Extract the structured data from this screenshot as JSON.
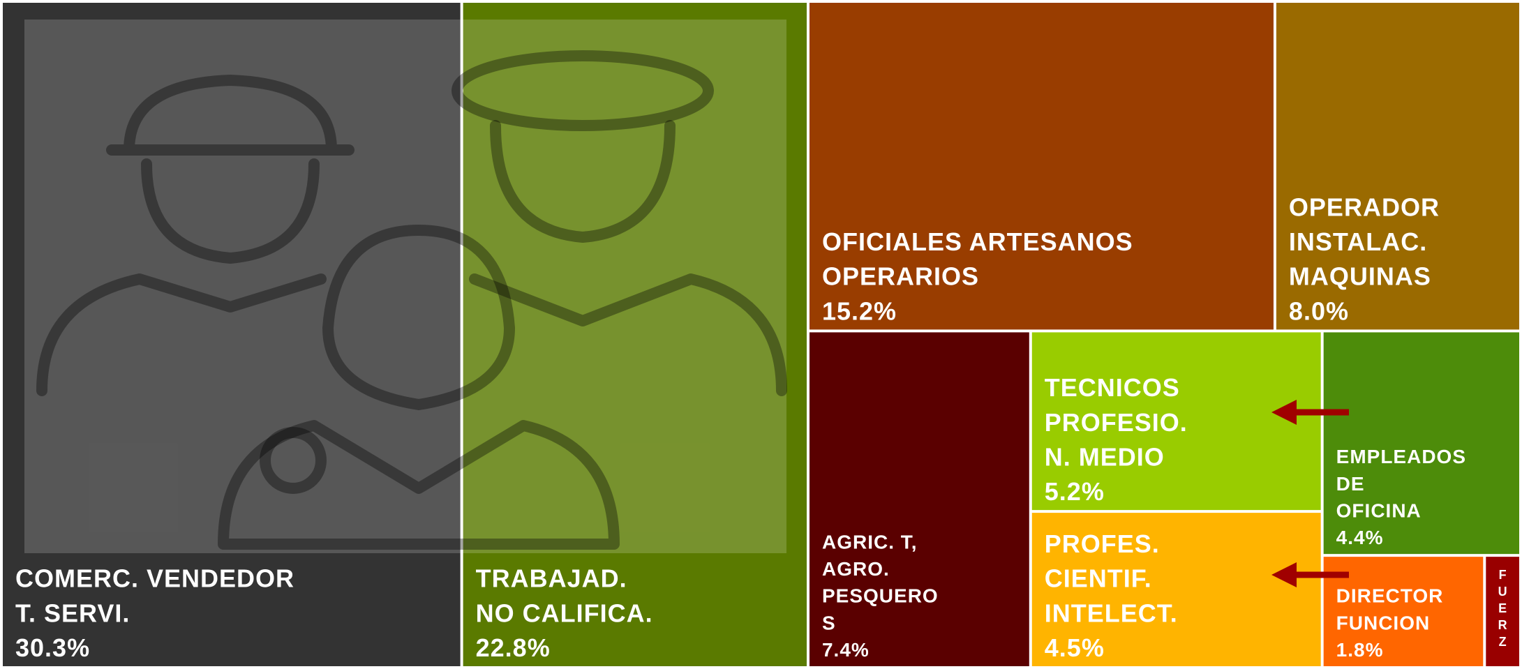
{
  "chart_data": {
    "type": "treemap",
    "items": [
      {
        "lines": [
          "COMERC. VENDEDOR",
          "T. SERVI."
        ],
        "value": 30.3,
        "value_label": "30.3%",
        "color": "#333333"
      },
      {
        "lines": [
          "TRABAJAD.",
          "NO CALIFICA."
        ],
        "value": 22.8,
        "value_label": "22.8%",
        "color": "#5a7a00"
      },
      {
        "lines": [
          "OFICIALES ARTESANOS",
          "OPERARIOS"
        ],
        "value": 15.2,
        "value_label": "15.2%",
        "color": "#993d00"
      },
      {
        "lines": [
          "OPERADOR",
          "INSTALAC.",
          "MAQUINAS"
        ],
        "value": 8.0,
        "value_label": "8.0%",
        "color": "#9a6a00"
      },
      {
        "lines": [
          "AGRIC. T,",
          "AGRO.",
          "PESQUERO",
          "S"
        ],
        "value": 7.4,
        "value_label": "7.4%",
        "color": "#5a0000"
      },
      {
        "lines": [
          "TECNICOS",
          "PROFESIO.",
          "N. MEDIO"
        ],
        "value": 5.2,
        "value_label": "5.2%",
        "color": "#99cc00"
      },
      {
        "lines": [
          "PROFES.",
          "CIENTIF.",
          "INTELECT."
        ],
        "value": 4.5,
        "value_label": "4.5%",
        "color": "#ffb400"
      },
      {
        "lines": [
          "EMPLEADOS",
          "DE",
          "OFICINA"
        ],
        "value": 4.4,
        "value_label": "4.4%",
        "color": "#4d8c0a"
      },
      {
        "lines": [
          "DIRECTOR",
          "FUNCION"
        ],
        "value": 1.8,
        "value_label": "1.8%",
        "color": "#ff6600"
      },
      {
        "lines": [
          "FUERZ"
        ],
        "value": 0.4,
        "color": "#990000"
      }
    ]
  }
}
